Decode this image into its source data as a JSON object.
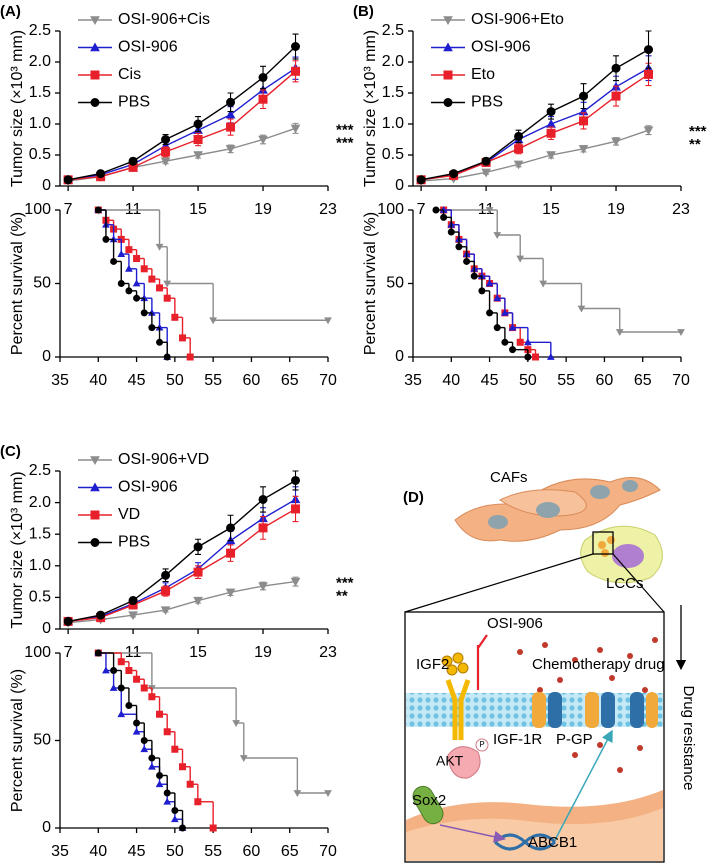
{
  "panels": [
    "(A)",
    "(B)",
    "(C)",
    "(D)"
  ],
  "chart_data": [
    {
      "type": "line",
      "ylabel": "Tumor size (×10³ mm)",
      "x": [
        7,
        9,
        11,
        13,
        15,
        17,
        19,
        21
      ],
      "xlim": [
        6.5,
        23
      ],
      "xticks": [
        7,
        11,
        15,
        19,
        23
      ],
      "ylim": [
        0,
        2.5
      ],
      "yticks": [
        0,
        0.5,
        {
          "value": 1,
          "label": "1.0"
        },
        1.5,
        {
          "value": 2,
          "label": "2.0"
        },
        2.5
      ],
      "legend": "upper left",
      "series": [
        {
          "name": "OSI-906+Cis",
          "color": "#8c8c8c",
          "marker": "triangle-down",
          "values": [
            0.08,
            0.15,
            0.3,
            0.4,
            0.5,
            0.6,
            0.75,
            0.93
          ],
          "errors": [
            0.02,
            0.03,
            0.03,
            0.04,
            0.05,
            0.06,
            0.07,
            0.08
          ]
        },
        {
          "name": "OSI-906",
          "color": "#1f1fd0",
          "marker": "triangle-up",
          "values": [
            0.1,
            0.18,
            0.35,
            0.65,
            0.9,
            1.15,
            1.55,
            1.9
          ],
          "errors": [
            0.02,
            0.03,
            0.05,
            0.08,
            0.1,
            0.13,
            0.15,
            0.18
          ]
        },
        {
          "name": "Cis",
          "color": "#e8202a",
          "marker": "square",
          "values": [
            0.1,
            0.15,
            0.3,
            0.55,
            0.75,
            0.95,
            1.4,
            1.85
          ],
          "errors": [
            0.02,
            0.03,
            0.05,
            0.08,
            0.1,
            0.13,
            0.15,
            0.17
          ]
        },
        {
          "name": "PBS",
          "color": "#000000",
          "marker": "circle",
          "values": [
            0.1,
            0.2,
            0.4,
            0.75,
            1.0,
            1.35,
            1.75,
            2.25
          ],
          "errors": [
            0.02,
            0.03,
            0.05,
            0.08,
            0.12,
            0.15,
            0.18,
            0.2
          ]
        }
      ],
      "annotations": [
        {
          "text": "***",
          "color": "#000000"
        },
        {
          "text": "***",
          "color": "#e8202a"
        }
      ]
    },
    {
      "type": "step",
      "ylabel": "Percent survival (%)",
      "xlim": [
        35,
        70
      ],
      "xticks": [
        35,
        40,
        45,
        50,
        55,
        60,
        65,
        70
      ],
      "ylim": [
        0,
        100
      ],
      "yticks": [
        0,
        50,
        100
      ],
      "series": [
        {
          "color": "#8c8c8c",
          "marker": "triangle-down",
          "x": [
            40,
            48,
            49,
            55,
            70
          ],
          "values": [
            100,
            75,
            50,
            25,
            25
          ]
        },
        {
          "color": "#e8202a",
          "marker": "square",
          "x": [
            40,
            41,
            42,
            43,
            44,
            45,
            46,
            47,
            48,
            49,
            50,
            51,
            52
          ],
          "values": [
            100,
            93,
            87,
            80,
            73,
            67,
            60,
            53,
            47,
            40,
            27,
            13,
            0
          ]
        },
        {
          "color": "#1f1fd0",
          "marker": "triangle-up",
          "x": [
            40,
            41,
            42,
            43,
            44,
            45,
            46,
            47,
            48,
            49
          ],
          "values": [
            100,
            90,
            80,
            70,
            60,
            50,
            40,
            30,
            20,
            0
          ]
        },
        {
          "color": "#000000",
          "marker": "circle",
          "x": [
            40,
            41,
            42,
            43,
            44,
            45,
            46,
            47,
            48,
            49
          ],
          "values": [
            100,
            80,
            65,
            50,
            45,
            40,
            30,
            20,
            10,
            0
          ]
        }
      ]
    },
    {
      "type": "line",
      "ylabel": "Tumor size (×10³ mm)",
      "x": [
        7,
        9,
        11,
        13,
        15,
        17,
        19,
        21
      ],
      "xlim": [
        6.5,
        23
      ],
      "xticks": [
        7,
        11,
        15,
        19,
        23
      ],
      "ylim": [
        0,
        2.5
      ],
      "yticks": [
        0,
        0.5,
        {
          "value": 1,
          "label": "1.0"
        },
        1.5,
        {
          "value": 2,
          "label": "2.0"
        },
        2.5
      ],
      "legend": "upper left",
      "series": [
        {
          "name": "OSI-906+Eto",
          "color": "#8c8c8c",
          "marker": "triangle-down",
          "values": [
            0.08,
            0.12,
            0.22,
            0.35,
            0.5,
            0.6,
            0.72,
            0.9
          ],
          "errors": [
            0.02,
            0.02,
            0.03,
            0.04,
            0.05,
            0.05,
            0.06,
            0.07
          ]
        },
        {
          "name": "OSI-906",
          "color": "#1f1fd0",
          "marker": "triangle-up",
          "values": [
            0.1,
            0.18,
            0.38,
            0.75,
            1.0,
            1.2,
            1.6,
            1.9
          ],
          "errors": [
            0.02,
            0.03,
            0.05,
            0.1,
            0.12,
            0.15,
            0.17,
            0.2
          ]
        },
        {
          "name": "Eto",
          "color": "#e8202a",
          "marker": "square",
          "values": [
            0.1,
            0.17,
            0.38,
            0.6,
            0.85,
            1.05,
            1.45,
            1.8
          ],
          "errors": [
            0.02,
            0.03,
            0.05,
            0.08,
            0.1,
            0.13,
            0.16,
            0.18
          ]
        },
        {
          "name": "PBS",
          "color": "#000000",
          "marker": "circle",
          "values": [
            0.1,
            0.2,
            0.4,
            0.8,
            1.2,
            1.45,
            1.9,
            2.2
          ],
          "errors": [
            0.02,
            0.03,
            0.05,
            0.1,
            0.12,
            0.2,
            0.2,
            0.3
          ]
        }
      ],
      "annotations": [
        {
          "text": "***",
          "color": "#000000"
        },
        {
          "text": "**",
          "color": "#e8202a"
        }
      ]
    },
    {
      "type": "step",
      "ylabel": "Percent survival (%)",
      "xlim": [
        35,
        70
      ],
      "xticks": [
        35,
        40,
        45,
        50,
        55,
        60,
        65,
        70
      ],
      "ylim": [
        0,
        100
      ],
      "yticks": [
        0,
        50,
        100
      ],
      "series": [
        {
          "color": "#8c8c8c",
          "marker": "triangle-down",
          "x": [
            39,
            45,
            46,
            49,
            52,
            57,
            62,
            70
          ],
          "values": [
            100,
            100,
            83,
            67,
            50,
            33,
            17,
            17
          ]
        },
        {
          "color": "#e8202a",
          "marker": "square",
          "x": [
            39,
            40,
            41,
            42,
            43,
            44,
            45,
            46,
            47,
            48,
            49,
            50,
            51
          ],
          "values": [
            100,
            90,
            80,
            70,
            60,
            55,
            50,
            40,
            30,
            20,
            10,
            5,
            0
          ]
        },
        {
          "color": "#1f1fd0",
          "marker": "triangle-up",
          "x": [
            39,
            40,
            41,
            42,
            43,
            44,
            45,
            46,
            47,
            48,
            50,
            53
          ],
          "values": [
            100,
            90,
            80,
            70,
            60,
            55,
            50,
            40,
            30,
            20,
            10,
            0
          ]
        },
        {
          "color": "#000000",
          "marker": "circle",
          "x": [
            38,
            39,
            40,
            41,
            42,
            43,
            44,
            45,
            46,
            47,
            48,
            50
          ],
          "values": [
            100,
            95,
            85,
            75,
            65,
            55,
            45,
            30,
            20,
            10,
            5,
            0
          ]
        }
      ]
    },
    {
      "type": "line",
      "ylabel": "Tumor size (×10³ mm)",
      "x": [
        7,
        9,
        11,
        13,
        15,
        17,
        19,
        21
      ],
      "xlim": [
        6.5,
        23
      ],
      "xticks": [
        7,
        11,
        15,
        19,
        23
      ],
      "ylim": [
        0,
        2.5
      ],
      "yticks": [
        0,
        0.5,
        {
          "value": 1,
          "label": "1.0"
        },
        1.5,
        {
          "value": 2,
          "label": "2.0"
        },
        2.5
      ],
      "legend": "upper left",
      "series": [
        {
          "name": "OSI-906+VD",
          "color": "#8c8c8c",
          "marker": "triangle-down",
          "values": [
            0.1,
            0.15,
            0.22,
            0.3,
            0.45,
            0.58,
            0.68,
            0.75
          ],
          "errors": [
            0.02,
            0.02,
            0.03,
            0.03,
            0.04,
            0.05,
            0.06,
            0.07
          ]
        },
        {
          "name": "OSI-906",
          "color": "#1f1fd0",
          "marker": "triangle-up",
          "values": [
            0.12,
            0.2,
            0.4,
            0.65,
            0.95,
            1.4,
            1.75,
            2.05
          ],
          "errors": [
            0.02,
            0.03,
            0.05,
            0.08,
            0.1,
            0.15,
            0.17,
            0.2
          ]
        },
        {
          "name": "VD",
          "color": "#e8202a",
          "marker": "square",
          "values": [
            0.12,
            0.18,
            0.38,
            0.6,
            0.9,
            1.2,
            1.6,
            1.9
          ],
          "errors": [
            0.02,
            0.03,
            0.05,
            0.08,
            0.1,
            0.13,
            0.18,
            0.2
          ]
        },
        {
          "name": "PBS",
          "color": "#000000",
          "marker": "circle",
          "values": [
            0.12,
            0.22,
            0.45,
            0.85,
            1.3,
            1.6,
            2.05,
            2.35
          ],
          "errors": [
            0.02,
            0.03,
            0.05,
            0.1,
            0.12,
            0.2,
            0.2,
            0.15
          ]
        }
      ],
      "annotations": [
        {
          "text": "***",
          "color": "#000000"
        },
        {
          "text": "**",
          "color": "#e8202a"
        }
      ]
    },
    {
      "type": "step",
      "ylabel": "Percent survival (%)",
      "xlim": [
        35,
        70
      ],
      "xticks": [
        35,
        40,
        45,
        50,
        55,
        60,
        65,
        70
      ],
      "ylim": [
        0,
        100
      ],
      "yticks": [
        0,
        50,
        100
      ],
      "series": [
        {
          "color": "#8c8c8c",
          "marker": "triangle-down",
          "x": [
            40,
            47,
            58,
            59,
            66,
            70
          ],
          "values": [
            100,
            80,
            60,
            40,
            20,
            20
          ]
        },
        {
          "color": "#e8202a",
          "marker": "square",
          "x": [
            40,
            43,
            44,
            45,
            46,
            47,
            48,
            49,
            50,
            51,
            52,
            53,
            55
          ],
          "values": [
            100,
            95,
            90,
            85,
            80,
            75,
            65,
            55,
            45,
            35,
            25,
            15,
            0
          ]
        },
        {
          "color": "#1f1fd0",
          "marker": "triangle-up",
          "x": [
            40,
            41,
            42,
            43,
            45,
            46,
            47,
            48,
            49,
            50,
            51
          ],
          "values": [
            100,
            90,
            80,
            65,
            55,
            45,
            35,
            25,
            15,
            5,
            0
          ]
        },
        {
          "color": "#000000",
          "marker": "circle",
          "x": [
            40,
            42,
            43,
            44,
            45,
            46,
            47,
            48,
            49,
            50,
            51
          ],
          "values": [
            100,
            90,
            80,
            70,
            60,
            50,
            40,
            30,
            20,
            10,
            0
          ]
        }
      ]
    }
  ],
  "diagram": {
    "cafs": "CAFs",
    "lccs": "LCCs",
    "inhibitor": "OSI-906",
    "ligand": "IGF2",
    "drug": "Chemotherapy drug",
    "receptor": "IGF-1R",
    "pump": "P-GP",
    "kinase": "AKT",
    "phospho": "P",
    "factor": "Sox2",
    "gene": "ABCB1",
    "outcome": "Drug resistance"
  }
}
